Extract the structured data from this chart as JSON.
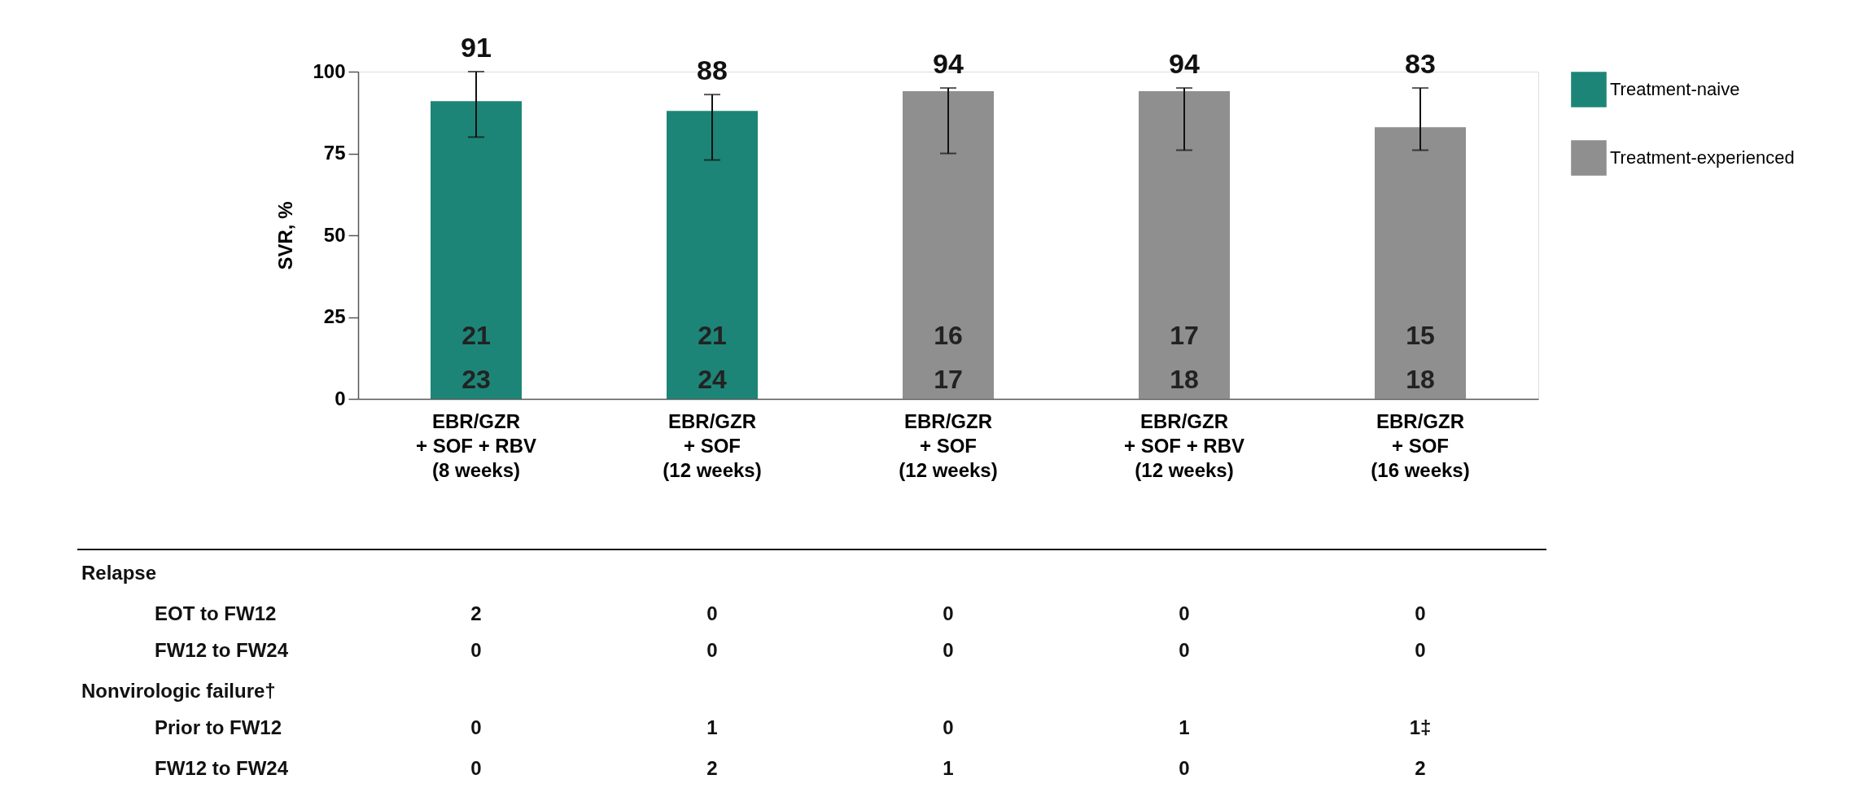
{
  "chart_data": {
    "type": "bar",
    "ylabel": "SVR, %",
    "categories": [
      "EBR/GZR\n+ SOF + RBV\n(8 weeks)",
      "EBR/GZR\n+ SOF\n(12 weeks)",
      "EBR/GZR\n+ SOF\n(12 weeks)",
      "EBR/GZR\n+ SOF + RBV\n(12 weeks)",
      "EBR/GZR\n+ SOF\n(16 weeks)"
    ],
    "series": [
      {
        "name": "Treatment-naive",
        "color": "#1d8577",
        "values": [
          91,
          88,
          null,
          null,
          null
        ],
        "errors": [
          [
            80,
            100
          ],
          [
            73,
            93
          ],
          null,
          null,
          null
        ]
      },
      {
        "name": "Treatment-experienced",
        "color": "#8f8f8f",
        "values": [
          null,
          null,
          94,
          94,
          83
        ],
        "errors": [
          null,
          null,
          [
            75,
            95
          ],
          [
            76,
            95
          ],
          [
            76,
            95
          ]
        ]
      }
    ],
    "ylim": [
      0,
      100
    ],
    "yticks": [
      0,
      25,
      50,
      75,
      100
    ],
    "grid": false,
    "legend": "top right",
    "data_labels": true,
    "annotations": [
      "21",
      "23",
      "21",
      "24",
      "16",
      "17",
      "17",
      "18",
      "15",
      "18",
      "Relapse",
      "EOT to FW12",
      "2",
      "0",
      "0",
      "0",
      "0",
      "FW12 to FW24",
      "0",
      "0",
      "0",
      "0",
      "0",
      "Nonvirologic failure†",
      "Prior to FW12",
      "0",
      "1",
      "0",
      "1",
      "1‡",
      "FW12 to FW24",
      "0",
      "2",
      "1",
      "0",
      "2"
    ]
  }
}
